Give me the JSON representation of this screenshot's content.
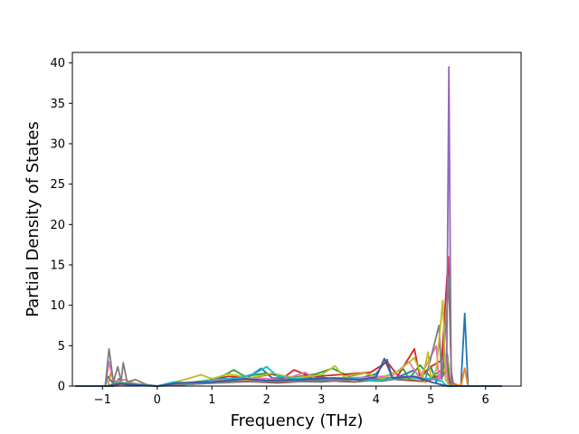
{
  "chart_data": {
    "type": "line",
    "title": "",
    "xlabel": "Frequency (THz)",
    "ylabel": "Partial Density of States",
    "xlim": [
      -1.55,
      6.65
    ],
    "ylim": [
      0,
      41.3
    ],
    "xticks": [
      -1,
      0,
      1,
      2,
      3,
      4,
      5,
      6
    ],
    "xtick_labels": [
      "−1",
      "0",
      "1",
      "2",
      "3",
      "4",
      "5",
      "6"
    ],
    "yticks": [
      0,
      5,
      10,
      15,
      20,
      25,
      30,
      35,
      40
    ],
    "grid": false,
    "legend": "none",
    "series": [
      {
        "color": "#1f77b4",
        "points": [
          [
            -1.5,
            0
          ],
          [
            -0.95,
            0
          ],
          [
            -0.9,
            1.2
          ],
          [
            -0.8,
            0.3
          ],
          [
            -0.6,
            0.2
          ],
          [
            0,
            0
          ],
          [
            0.3,
            0.2
          ],
          [
            0.8,
            0.6
          ],
          [
            1.2,
            0.9
          ],
          [
            1.6,
            0.8
          ],
          [
            1.9,
            2.2
          ],
          [
            2.1,
            1.0
          ],
          [
            2.6,
            0.9
          ],
          [
            3.0,
            1.1
          ],
          [
            3.3,
            0.8
          ],
          [
            3.7,
            1.0
          ],
          [
            4.0,
            1.5
          ],
          [
            4.2,
            3.3
          ],
          [
            4.3,
            0.9
          ],
          [
            4.5,
            1.4
          ],
          [
            4.7,
            2.0
          ],
          [
            4.8,
            0.9
          ],
          [
            5.0,
            2.4
          ],
          [
            5.1,
            0.5
          ],
          [
            5.2,
            1.8
          ],
          [
            5.3,
            4.0
          ],
          [
            5.35,
            0.5
          ],
          [
            5.5,
            0
          ],
          [
            5.55,
            0
          ],
          [
            5.62,
            9.0
          ],
          [
            5.68,
            0
          ],
          [
            6.3,
            0
          ]
        ]
      },
      {
        "color": "#ff7f0e",
        "points": [
          [
            -1.5,
            0
          ],
          [
            -0.9,
            0
          ],
          [
            -0.85,
            1.6
          ],
          [
            -0.75,
            0.2
          ],
          [
            0,
            0
          ],
          [
            0.6,
            0.4
          ],
          [
            1.0,
            0.6
          ],
          [
            1.5,
            0.9
          ],
          [
            2.0,
            0.5
          ],
          [
            2.5,
            0.8
          ],
          [
            3.0,
            0.5
          ],
          [
            3.5,
            0.9
          ],
          [
            4.0,
            0.6
          ],
          [
            4.5,
            1.0
          ],
          [
            4.9,
            0.5
          ],
          [
            5.2,
            1.2
          ],
          [
            5.3,
            3.5
          ],
          [
            5.35,
            0.5
          ],
          [
            5.55,
            0
          ],
          [
            5.62,
            2.2
          ],
          [
            5.68,
            0
          ],
          [
            6.3,
            0
          ]
        ]
      },
      {
        "color": "#2ca02c",
        "points": [
          [
            -1.5,
            0
          ],
          [
            -0.9,
            0
          ],
          [
            -0.7,
            0.6
          ],
          [
            -0.5,
            0.1
          ],
          [
            0,
            0
          ],
          [
            0.7,
            0.5
          ],
          [
            1.1,
            0.9
          ],
          [
            1.4,
            2.0
          ],
          [
            1.6,
            1.2
          ],
          [
            2.0,
            1.6
          ],
          [
            2.4,
            1.0
          ],
          [
            2.9,
            1.5
          ],
          [
            3.2,
            2.2
          ],
          [
            3.5,
            1.2
          ],
          [
            3.8,
            1.6
          ],
          [
            4.1,
            1.0
          ],
          [
            4.5,
            2.1
          ],
          [
            4.6,
            0.9
          ],
          [
            4.8,
            2.6
          ],
          [
            5.0,
            1.1
          ],
          [
            5.2,
            2.0
          ],
          [
            5.3,
            3.0
          ],
          [
            5.35,
            0
          ],
          [
            6.3,
            0
          ]
        ]
      },
      {
        "color": "#d62728",
        "points": [
          [
            -1.5,
            0
          ],
          [
            -0.8,
            0
          ],
          [
            -0.6,
            0.4
          ],
          [
            0,
            0
          ],
          [
            0.9,
            0.6
          ],
          [
            1.3,
            1.2
          ],
          [
            1.7,
            1.0
          ],
          [
            2.1,
            1.5
          ],
          [
            2.3,
            1.0
          ],
          [
            2.5,
            2.0
          ],
          [
            2.8,
            1.2
          ],
          [
            3.1,
            1.3
          ],
          [
            3.5,
            1.5
          ],
          [
            3.9,
            1.7
          ],
          [
            4.2,
            3.0
          ],
          [
            4.4,
            1.3
          ],
          [
            4.7,
            4.6
          ],
          [
            4.8,
            1.2
          ],
          [
            5.0,
            2.4
          ],
          [
            5.2,
            3.2
          ],
          [
            5.32,
            16.0
          ],
          [
            5.38,
            0
          ],
          [
            6.3,
            0
          ]
        ]
      },
      {
        "color": "#9467bd",
        "points": [
          [
            -1.5,
            0
          ],
          [
            -0.9,
            0
          ],
          [
            -0.7,
            0.3
          ],
          [
            0,
            0
          ],
          [
            1.0,
            0.4
          ],
          [
            2.0,
            0.7
          ],
          [
            3.0,
            0.6
          ],
          [
            4.0,
            0.9
          ],
          [
            4.6,
            1.2
          ],
          [
            5.0,
            0.8
          ],
          [
            5.2,
            1.0
          ],
          [
            5.29,
            2.0
          ],
          [
            5.33,
            39.5
          ],
          [
            5.37,
            2.0
          ],
          [
            5.42,
            0
          ],
          [
            6.3,
            0
          ]
        ]
      },
      {
        "color": "#8c564b",
        "points": [
          [
            -1.5,
            0
          ],
          [
            -0.8,
            0
          ],
          [
            -0.7,
            0.9
          ],
          [
            -0.6,
            0.2
          ],
          [
            0,
            0
          ],
          [
            0.8,
            0.3
          ],
          [
            1.5,
            0.6
          ],
          [
            2.2,
            0.4
          ],
          [
            3.0,
            0.7
          ],
          [
            3.6,
            0.5
          ],
          [
            4.2,
            0.9
          ],
          [
            4.8,
            0.6
          ],
          [
            5.2,
            1.4
          ],
          [
            5.3,
            2.0
          ],
          [
            5.35,
            0
          ],
          [
            6.3,
            0
          ]
        ]
      },
      {
        "color": "#e377c2",
        "points": [
          [
            -1.5,
            0
          ],
          [
            -0.95,
            0
          ],
          [
            -0.88,
            3.0
          ],
          [
            -0.8,
            0.6
          ],
          [
            -0.6,
            0.8
          ],
          [
            -0.4,
            0.3
          ],
          [
            0,
            0
          ],
          [
            0.6,
            0.4
          ],
          [
            1.2,
            0.7
          ],
          [
            1.8,
            1.0
          ],
          [
            2.3,
            0.8
          ],
          [
            2.7,
            1.7
          ],
          [
            2.9,
            0.9
          ],
          [
            3.3,
            1.0
          ],
          [
            3.9,
            1.1
          ],
          [
            4.3,
            1.3
          ],
          [
            4.6,
            3.0
          ],
          [
            4.8,
            1.0
          ],
          [
            5.1,
            5.0
          ],
          [
            5.15,
            0.6
          ],
          [
            5.25,
            4.5
          ],
          [
            5.32,
            0
          ],
          [
            6.3,
            0
          ]
        ]
      },
      {
        "color": "#7f7f7f",
        "points": [
          [
            -1.5,
            0
          ],
          [
            -0.95,
            0
          ],
          [
            -0.88,
            4.6
          ],
          [
            -0.8,
            0.5
          ],
          [
            -0.72,
            2.4
          ],
          [
            -0.66,
            0.6
          ],
          [
            -0.62,
            2.9
          ],
          [
            -0.55,
            0.5
          ],
          [
            -0.4,
            0.8
          ],
          [
            -0.2,
            0.2
          ],
          [
            0,
            0
          ],
          [
            0.8,
            0.3
          ],
          [
            1.5,
            0.5
          ],
          [
            2.2,
            0.6
          ],
          [
            3.0,
            0.5
          ],
          [
            3.6,
            0.8
          ],
          [
            4.1,
            0.6
          ],
          [
            4.6,
            1.1
          ],
          [
            4.9,
            0.8
          ],
          [
            5.15,
            7.5
          ],
          [
            5.2,
            0.8
          ],
          [
            5.3,
            10.0
          ],
          [
            5.34,
            13.8
          ],
          [
            5.38,
            0
          ],
          [
            6.3,
            0
          ]
        ]
      },
      {
        "color": "#bcbd22",
        "points": [
          [
            -1.5,
            0
          ],
          [
            -0.9,
            0
          ],
          [
            -0.7,
            0.5
          ],
          [
            0,
            0
          ],
          [
            0.5,
            0.8
          ],
          [
            0.8,
            1.4
          ],
          [
            1.0,
            0.9
          ],
          [
            1.3,
            1.5
          ],
          [
            1.7,
            1.0
          ],
          [
            2.1,
            1.6
          ],
          [
            2.5,
            1.0
          ],
          [
            3.0,
            1.4
          ],
          [
            3.25,
            2.5
          ],
          [
            3.4,
            1.2
          ],
          [
            3.8,
            1.6
          ],
          [
            4.1,
            0.9
          ],
          [
            4.4,
            1.8
          ],
          [
            4.7,
            3.5
          ],
          [
            4.85,
            1.0
          ],
          [
            4.95,
            4.2
          ],
          [
            5.0,
            1.0
          ],
          [
            5.1,
            2.0
          ],
          [
            5.22,
            10.6
          ],
          [
            5.27,
            0.8
          ],
          [
            5.35,
            0
          ],
          [
            6.3,
            0
          ]
        ]
      },
      {
        "color": "#17becf",
        "points": [
          [
            -1.5,
            0
          ],
          [
            -0.9,
            0
          ],
          [
            -0.7,
            0.4
          ],
          [
            0,
            0
          ],
          [
            0.3,
            0.5
          ],
          [
            0.6,
            0.3
          ],
          [
            1.0,
            0.8
          ],
          [
            1.5,
            1.0
          ],
          [
            1.8,
            1.6
          ],
          [
            2.0,
            2.4
          ],
          [
            2.2,
            1.2
          ],
          [
            2.6,
            0.9
          ],
          [
            3.0,
            0.8
          ],
          [
            3.5,
            1.0
          ],
          [
            4.0,
            0.7
          ],
          [
            4.5,
            1.1
          ],
          [
            5.0,
            0.9
          ],
          [
            5.2,
            0.6
          ],
          [
            5.3,
            0
          ],
          [
            6.3,
            0
          ]
        ]
      },
      {
        "color": "#3b56a0",
        "points": [
          [
            -1.5,
            0
          ],
          [
            -0.9,
            0
          ],
          [
            -0.7,
            0.3
          ],
          [
            0,
            0
          ],
          [
            0.4,
            0.4
          ],
          [
            1.0,
            0.5
          ],
          [
            1.6,
            0.9
          ],
          [
            2.0,
            0.7
          ],
          [
            2.6,
            0.8
          ],
          [
            3.2,
            1.0
          ],
          [
            3.7,
            0.8
          ],
          [
            4.0,
            1.1
          ],
          [
            4.15,
            3.4
          ],
          [
            4.3,
            1.0
          ],
          [
            4.7,
            1.2
          ],
          [
            5.0,
            0.5
          ],
          [
            5.3,
            0
          ],
          [
            6.3,
            0
          ]
        ]
      }
    ]
  }
}
